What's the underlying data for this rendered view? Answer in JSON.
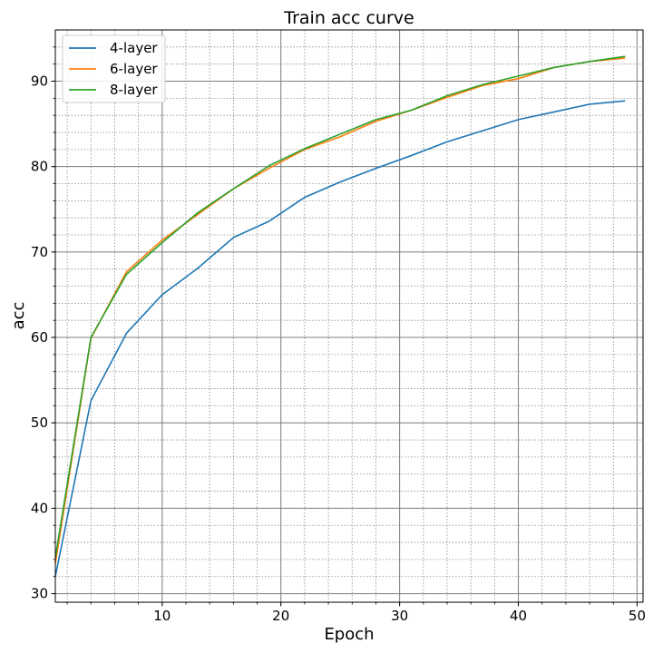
{
  "chart_data": {
    "type": "line",
    "title": "Train acc curve",
    "xlabel": "Epoch",
    "ylabel": "acc",
    "xlim": [
      1,
      50.5
    ],
    "ylim": [
      29,
      96
    ],
    "xticks": [
      10,
      20,
      30,
      40,
      50
    ],
    "yticks": [
      30,
      40,
      50,
      60,
      70,
      80,
      90
    ],
    "grid": {
      "major": true,
      "minor": true
    },
    "legend": {
      "placement": "top-left"
    },
    "x": [
      1,
      4,
      7,
      10,
      13,
      16,
      19,
      22,
      25,
      28,
      31,
      34,
      37,
      40,
      43,
      46,
      49
    ],
    "series": [
      {
        "name": "4-layer",
        "color": "#1f77b4",
        "values": [
          32.0,
          52.6,
          60.5,
          65.0,
          68.1,
          71.7,
          73.6,
          76.4,
          78.2,
          79.8,
          81.3,
          82.9,
          84.2,
          85.5,
          86.4,
          87.3,
          87.7
        ]
      },
      {
        "name": "6-layer",
        "color": "#ff7f0e",
        "values": [
          33.5,
          59.9,
          67.7,
          71.4,
          74.4,
          77.4,
          79.8,
          82.0,
          83.5,
          85.3,
          86.6,
          88.1,
          89.5,
          90.3,
          91.6,
          92.3,
          92.7
        ]
      },
      {
        "name": "8-layer",
        "color": "#2ca02c",
        "values": [
          34.2,
          60.0,
          67.4,
          71.1,
          74.6,
          77.4,
          80.1,
          82.1,
          83.8,
          85.5,
          86.6,
          88.3,
          89.6,
          90.6,
          91.6,
          92.3,
          92.9
        ]
      }
    ]
  }
}
